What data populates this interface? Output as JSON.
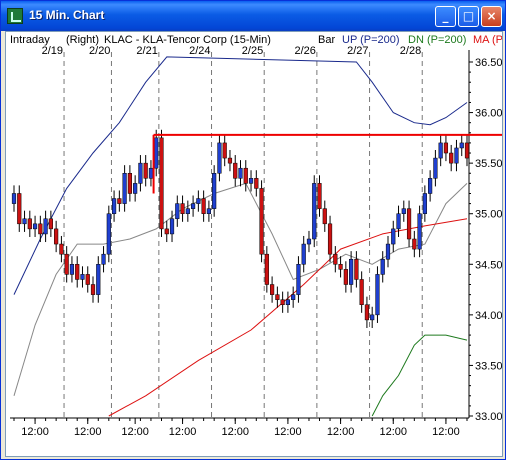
{
  "window": {
    "title": "15 Min. Chart",
    "minimize_label": "_",
    "maximize_label": "□",
    "close_label": "×"
  },
  "chart_data": {
    "type": "candlestick",
    "header": {
      "period": "Intraday",
      "axis_side": "(Right)",
      "title": "KLAC - KLA-Tencor Corp (15-Min)",
      "bar_label": "Bar",
      "up_label": "UP (P=200)",
      "dn_label": "DN (P=200)",
      "ma_label": "MA (P"
    },
    "date_labels": [
      "2/19",
      "2/20",
      "2/21",
      "2/24",
      "2/25",
      "2/26",
      "2/27",
      "2/28"
    ],
    "x_tick_labels": [
      "12:00",
      "12:00",
      "12:00",
      "12:00",
      "12:00",
      "12:00",
      "12:00",
      "12:00",
      "12:00"
    ],
    "y_ticks": [
      33.0,
      33.5,
      34.0,
      34.5,
      35.0,
      35.5,
      36.0,
      36.5
    ],
    "y_tick_labels": [
      "33.00",
      "33.50",
      "34.00",
      "34.50",
      "35.00",
      "35.50",
      "36.00",
      "36.50"
    ],
    "ylim": [
      33.0,
      36.5
    ],
    "bars_total": 87,
    "horizontal_line": 35.78,
    "closes": [
      35.2,
      34.9,
      34.95,
      34.85,
      34.9,
      34.8,
      34.95,
      34.85,
      34.7,
      34.6,
      34.4,
      34.5,
      34.35,
      34.4,
      34.3,
      34.2,
      34.5,
      34.6,
      35.0,
      35.15,
      35.1,
      35.4,
      35.2,
      35.3,
      35.5,
      35.35,
      35.45,
      35.75,
      34.85,
      34.8,
      34.95,
      35.1,
      35.0,
      35.05,
      35.1,
      35.15,
      35.0,
      35.05,
      35.4,
      35.7,
      35.55,
      35.5,
      35.35,
      35.45,
      35.3,
      35.35,
      35.25,
      34.6,
      34.3,
      34.2,
      34.15,
      34.1,
      34.15,
      34.2,
      34.5,
      34.7,
      34.75,
      35.3,
      35.05,
      34.9,
      34.6,
      34.5,
      34.45,
      34.3,
      34.55,
      34.35,
      34.1,
      33.95,
      34.0,
      34.4,
      34.55,
      34.7,
      34.85,
      35.0,
      35.05,
      34.75,
      34.65,
      35.0,
      35.2,
      35.35,
      35.55,
      35.7,
      35.6,
      35.5,
      35.65,
      35.7,
      35.55
    ],
    "up_band": [
      {
        "i": 0,
        "v": 34.2
      },
      {
        "i": 5,
        "v": 34.75
      },
      {
        "i": 10,
        "v": 35.25
      },
      {
        "i": 15,
        "v": 35.6
      },
      {
        "i": 20,
        "v": 35.9
      },
      {
        "i": 25,
        "v": 36.3
      },
      {
        "i": 29,
        "v": 36.55
      },
      {
        "i": 65,
        "v": 36.5
      },
      {
        "i": 68,
        "v": 36.3
      },
      {
        "i": 72,
        "v": 36.0
      },
      {
        "i": 76,
        "v": 35.9
      },
      {
        "i": 79,
        "v": 35.88
      },
      {
        "i": 82,
        "v": 35.95
      },
      {
        "i": 86,
        "v": 36.1
      }
    ],
    "dn_band": [
      {
        "i": 68,
        "v": 33.0
      },
      {
        "i": 70,
        "v": 33.2
      },
      {
        "i": 73,
        "v": 33.4
      },
      {
        "i": 76,
        "v": 33.7
      },
      {
        "i": 78,
        "v": 33.8
      },
      {
        "i": 82,
        "v": 33.8
      },
      {
        "i": 86,
        "v": 33.75
      }
    ],
    "ma": [
      {
        "i": 18,
        "v": 33.0
      },
      {
        "i": 25,
        "v": 33.2
      },
      {
        "i": 35,
        "v": 33.55
      },
      {
        "i": 45,
        "v": 33.85
      },
      {
        "i": 55,
        "v": 34.3
      },
      {
        "i": 62,
        "v": 34.65
      },
      {
        "i": 70,
        "v": 34.8
      },
      {
        "i": 78,
        "v": 34.88
      },
      {
        "i": 86,
        "v": 34.95
      }
    ],
    "smooth": [
      {
        "i": 0,
        "v": 33.2
      },
      {
        "i": 4,
        "v": 33.9
      },
      {
        "i": 8,
        "v": 34.4
      },
      {
        "i": 12,
        "v": 34.7
      },
      {
        "i": 17,
        "v": 34.7
      },
      {
        "i": 22,
        "v": 34.75
      },
      {
        "i": 27,
        "v": 34.85
      },
      {
        "i": 32,
        "v": 35.05
      },
      {
        "i": 38,
        "v": 35.2
      },
      {
        "i": 44,
        "v": 35.3
      },
      {
        "i": 49,
        "v": 34.8
      },
      {
        "i": 53,
        "v": 34.35
      },
      {
        "i": 58,
        "v": 34.45
      },
      {
        "i": 63,
        "v": 34.6
      },
      {
        "i": 68,
        "v": 34.5
      },
      {
        "i": 73,
        "v": 34.65
      },
      {
        "i": 78,
        "v": 34.7
      },
      {
        "i": 82,
        "v": 35.1
      },
      {
        "i": 86,
        "v": 35.3
      }
    ],
    "colors": {
      "up": "#1F3FD0",
      "down": "#CC1111",
      "up_band": "#1A2A8C",
      "dn_band": "#1E7A1E",
      "ma": "#DD1111",
      "smooth": "#888888",
      "grid": "#777777",
      "hline": "#EE0000"
    }
  }
}
